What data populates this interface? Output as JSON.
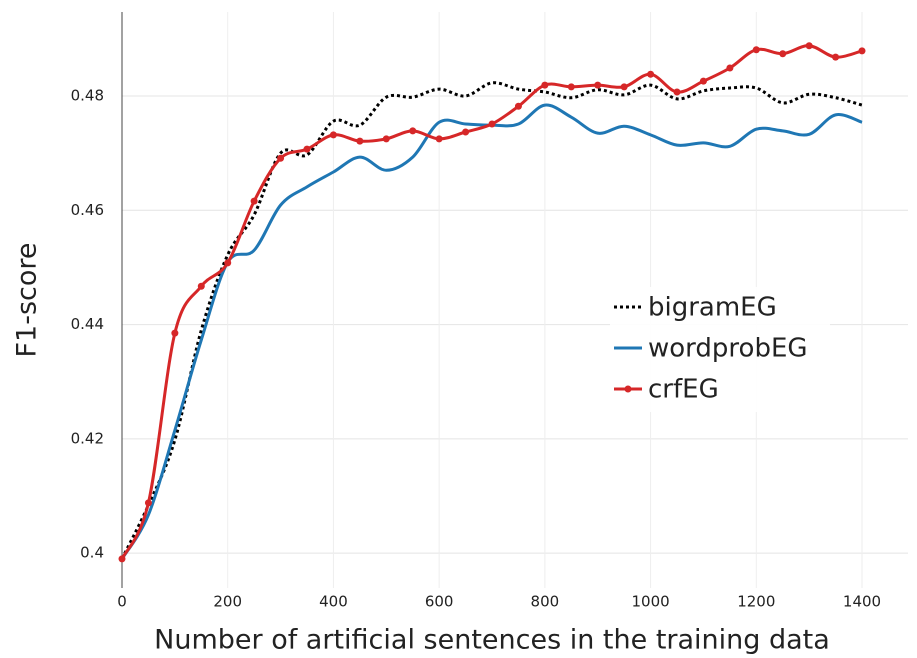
{
  "chart_data": {
    "type": "line",
    "x_label": "Number of artificial sentences in the training data",
    "y_label": "F1-score",
    "x": [
      0,
      50,
      100,
      150,
      200,
      250,
      300,
      350,
      400,
      450,
      500,
      550,
      600,
      650,
      700,
      750,
      800,
      850,
      900,
      950,
      1000,
      1050,
      1100,
      1150,
      1200,
      1250,
      1300,
      1350,
      1400
    ],
    "series": [
      {
        "name": "bigramEG",
        "color": "#000000",
        "dash": "dot",
        "markers": false,
        "values": [
          0.399,
          0.4084,
          0.4198,
          0.439,
          0.4522,
          0.4592,
          0.47,
          0.4697,
          0.4756,
          0.4749,
          0.4798,
          0.4798,
          0.4812,
          0.48,
          0.4823,
          0.4812,
          0.4807,
          0.4797,
          0.4811,
          0.4802,
          0.4819,
          0.4795,
          0.4809,
          0.4814,
          0.4814,
          0.4788,
          0.4803,
          0.4797,
          0.4784
        ]
      },
      {
        "name": "wordprobEG",
        "color": "#1f77b4",
        "dash": "solid",
        "markers": false,
        "values": [
          0.399,
          0.4067,
          0.4215,
          0.4373,
          0.4509,
          0.453,
          0.4609,
          0.4641,
          0.4667,
          0.4693,
          0.467,
          0.4693,
          0.4754,
          0.4751,
          0.4749,
          0.4751,
          0.4784,
          0.4763,
          0.4735,
          0.4747,
          0.4732,
          0.4714,
          0.4718,
          0.4712,
          0.4742,
          0.4739,
          0.4733,
          0.4767,
          0.4754
        ]
      },
      {
        "name": "crfEG",
        "color": "#d62728",
        "dash": "solid",
        "markers": true,
        "values": [
          0.399,
          0.4088,
          0.4385,
          0.4467,
          0.4508,
          0.4616,
          0.4691,
          0.4707,
          0.4732,
          0.4721,
          0.4725,
          0.4739,
          0.4725,
          0.4737,
          0.4751,
          0.4782,
          0.4819,
          0.4816,
          0.4819,
          0.4816,
          0.4838,
          0.4807,
          0.4826,
          0.4849,
          0.4881,
          0.4874,
          0.4888,
          0.4868,
          0.4879
        ]
      }
    ],
    "xlim": [
      0,
      1487
    ],
    "ylim": [
      0.3939,
      0.4947
    ],
    "xticks": [
      0,
      200,
      400,
      600,
      800,
      1000,
      1200,
      1400
    ],
    "yticks": [
      0.4,
      0.42,
      0.44,
      0.46,
      0.48
    ],
    "grid": true,
    "legend": "right"
  }
}
